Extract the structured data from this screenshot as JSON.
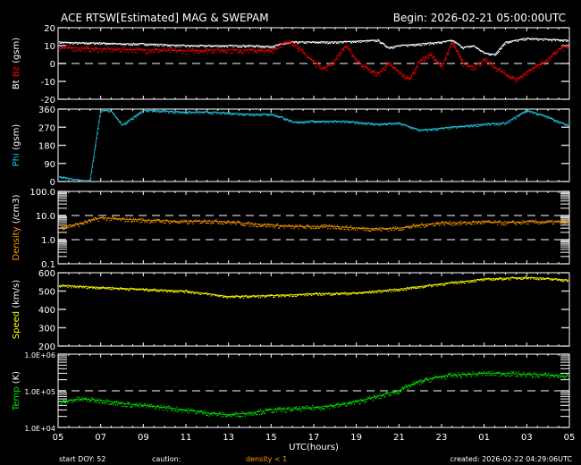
{
  "header": {
    "title": "ACE RTSW[Estimated] MAG & SWEPAM",
    "begin": "Begin: 2026-02-21 05:00:00UTC"
  },
  "footer": {
    "start_doy": "start DOY:  52",
    "caution": "caution:",
    "density_note": "density < 1",
    "created": "created: 2026-02-22 04:29:06UTC"
  },
  "colors": {
    "bt": "#ffffff",
    "bz": "#ff0000",
    "phi": "#1ec8e6",
    "density": "#ff9900",
    "speed": "#ffff00",
    "temp": "#00ee00"
  },
  "chart_data": {
    "type": "scatter",
    "title": "ACE RTSW[Estimated] MAG & SWEPAM",
    "xlabel": "UTC(hours)",
    "x_range_hours": [
      0,
      24
    ],
    "x_tick_labels": [
      "05",
      "07",
      "09",
      "11",
      "13",
      "15",
      "17",
      "19",
      "21",
      "23",
      "01",
      "03",
      "05"
    ],
    "panels": [
      {
        "id": "mag",
        "ylabel_parts": [
          "Bt",
          "Bz",
          "(gsm)"
        ],
        "scale": "linear",
        "ylim": [
          -20,
          20
        ],
        "tick_labels": [
          "20",
          "10",
          "0",
          "-10",
          "-20"
        ],
        "tick_values": [
          20,
          10,
          0,
          -10,
          -20
        ],
        "dashed_at": [
          0
        ],
        "series": [
          {
            "name": "Bt",
            "color_key": "bt",
            "t": [
              0,
              1,
              2,
              3,
              4,
              5,
              6,
              7,
              8,
              9,
              10,
              10.5,
              11,
              12,
              13,
              14,
              15,
              15.5,
              16,
              17,
              18,
              18.5,
              19,
              19.5,
              20,
              20.5,
              21,
              22,
              23,
              24
            ],
            "v": [
              12,
              11.5,
              11.5,
              11,
              11,
              10.5,
              10,
              10,
              10,
              10,
              9.5,
              11,
              12,
              12,
              12,
              12.5,
              13,
              9,
              10,
              11,
              12,
              13,
              9,
              10,
              6,
              5,
              12,
              14,
              13.5,
              13
            ]
          },
          {
            "name": "Bz",
            "color_key": "bz",
            "t": [
              0,
              1,
              2,
              3,
              4,
              5,
              6,
              7,
              8,
              9,
              10,
              10.5,
              11,
              11.5,
              12,
              12.5,
              13,
              13.5,
              14,
              14.5,
              15,
              15.5,
              16,
              16.5,
              17,
              17.5,
              18,
              18.5,
              19,
              19.5,
              20,
              20.5,
              21,
              21.5,
              22,
              22.5,
              23,
              23.5,
              24
            ],
            "v": [
              9,
              8.5,
              8,
              8,
              7.5,
              7.5,
              7,
              7.5,
              7.5,
              7.5,
              7,
              11,
              12,
              6,
              1,
              -3,
              2,
              10,
              2,
              -3,
              -6,
              0,
              -5,
              -9,
              2,
              5,
              -2,
              12,
              0,
              -2,
              2,
              -2,
              -6,
              -9,
              -5,
              -1,
              2,
              8,
              10
            ]
          }
        ]
      },
      {
        "id": "phi",
        "ylabel_parts": [
          "Phi",
          "(gsm)"
        ],
        "scale": "linear",
        "ylim": [
          0,
          360
        ],
        "tick_labels": [
          "360",
          "270",
          "180",
          "90",
          "0"
        ],
        "tick_values": [
          360,
          270,
          180,
          90,
          0
        ],
        "dashed_at": [],
        "series": [
          {
            "name": "Phi",
            "color_key": "phi",
            "t": [
              0,
              0.5,
              1,
              1.5,
              2,
              2.5,
              3,
              4,
              5,
              6,
              7,
              8,
              9,
              10,
              10.5,
              11,
              12,
              13,
              14,
              15,
              16,
              17,
              18,
              19,
              20,
              21,
              22,
              23,
              24
            ],
            "v": [
              25,
              15,
              8,
              3,
              355,
              350,
              280,
              355,
              350,
              345,
              345,
              340,
              335,
              335,
              320,
              295,
              300,
              300,
              295,
              285,
              290,
              255,
              265,
              275,
              285,
              290,
              355,
              320,
              275
            ]
          }
        ]
      },
      {
        "id": "density",
        "ylabel_parts": [
          "Density",
          "(/cm3)"
        ],
        "scale": "log",
        "ylim": [
          0.1,
          100
        ],
        "tick_labels": [
          "100.0",
          "10.0",
          "1.0",
          "0.1"
        ],
        "tick_values": [
          100,
          10,
          1,
          0.1
        ],
        "dashed_at": [
          10,
          1
        ],
        "series": [
          {
            "name": "Density",
            "color_key": "density",
            "t": [
              0,
              1,
              2,
              3,
              4,
              5,
              6,
              7,
              8,
              9,
              10,
              11,
              12,
              13,
              14,
              15,
              16,
              17,
              18,
              19,
              20,
              21,
              22,
              23,
              24
            ],
            "v": [
              3,
              4.5,
              8,
              7,
              6.5,
              6,
              5.5,
              6,
              5.5,
              4.5,
              4,
              3.5,
              3.5,
              3.5,
              3,
              2.8,
              3,
              4,
              5,
              5,
              5.5,
              5,
              5.5,
              5.5,
              5.5
            ]
          }
        ]
      },
      {
        "id": "speed",
        "ylabel_parts": [
          "Speed",
          "(km/s)"
        ],
        "scale": "linear",
        "ylim": [
          200,
          600
        ],
        "tick_labels": [
          "600",
          "500",
          "400",
          "300",
          "200"
        ],
        "tick_values": [
          600,
          500,
          400,
          300,
          200
        ],
        "dashed_at": [],
        "series": [
          {
            "name": "Speed",
            "color_key": "speed",
            "t": [
              0,
              2,
              4,
              6,
              8,
              10,
              12,
              14,
              16,
              18,
              20,
              22,
              24
            ],
            "v": [
              530,
              520,
              510,
              500,
              470,
              475,
              485,
              490,
              510,
              540,
              565,
              575,
              560
            ]
          }
        ]
      },
      {
        "id": "temp",
        "ylabel_parts": [
          "Temp",
          "(K)"
        ],
        "scale": "log",
        "ylim": [
          10000,
          1000000
        ],
        "tick_labels": [
          "1.0E+06",
          "1.0E+05",
          "1.0E+04"
        ],
        "tick_values": [
          1000000,
          100000,
          10000
        ],
        "dashed_at": [
          100000
        ],
        "series": [
          {
            "name": "Temp",
            "color_key": "temp",
            "t": [
              0,
              1,
              2,
              3,
              4,
              5,
              6,
              7,
              8,
              9,
              10,
              11,
              12,
              13,
              14,
              15,
              16,
              17,
              18,
              19,
              20,
              21,
              22,
              23,
              24
            ],
            "v": [
              50000,
              60000,
              55000,
              45000,
              40000,
              35000,
              30000,
              25000,
              22000,
              25000,
              30000,
              32000,
              35000,
              40000,
              50000,
              70000,
              100000,
              180000,
              250000,
              280000,
              300000,
              300000,
              280000,
              270000,
              250000
            ]
          }
        ]
      }
    ]
  }
}
